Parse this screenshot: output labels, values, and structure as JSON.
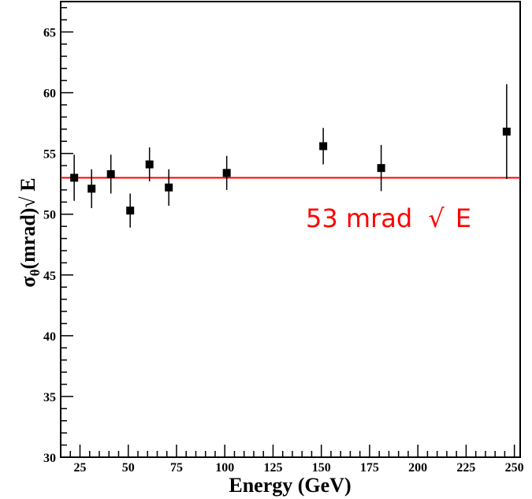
{
  "chart_data": {
    "type": "scatter",
    "xlabel": "Energy (GeV)",
    "ylabel_parts": {
      "sigma": "σ",
      "sub": "θ",
      "rest": "(mrad)",
      "sqrt": "√",
      "tail": " E"
    },
    "xlim": [
      15,
      253
    ],
    "ylim": [
      30,
      67.5
    ],
    "x_ticks": [
      25,
      50,
      75,
      100,
      125,
      150,
      175,
      200,
      225,
      250
    ],
    "y_ticks": [
      30,
      35,
      40,
      45,
      50,
      55,
      60,
      65
    ],
    "grid": false,
    "series": [
      {
        "points": [
          {
            "x": 22,
            "y": 53.0,
            "err": 1.9
          },
          {
            "x": 31,
            "y": 52.1,
            "err": 1.6
          },
          {
            "x": 41,
            "y": 53.3,
            "err": 1.6
          },
          {
            "x": 51,
            "y": 50.3,
            "err": 1.4
          },
          {
            "x": 61,
            "y": 54.1,
            "err": 1.4
          },
          {
            "x": 71,
            "y": 52.2,
            "err": 1.5
          },
          {
            "x": 101,
            "y": 53.4,
            "err": 1.4
          },
          {
            "x": 151,
            "y": 55.6,
            "err": 1.5
          },
          {
            "x": 181,
            "y": 53.8,
            "err": 1.9
          },
          {
            "x": 246,
            "y": 56.8,
            "err": 3.9
          }
        ]
      }
    ],
    "fit_line": {
      "y": 53,
      "color": "#ff0000"
    },
    "annotation": {
      "number": "53 mrad",
      "sqrt": "√",
      "var": "E",
      "color": "#ff0000"
    },
    "colors": {
      "markers": "#000000",
      "axes": "#000000"
    }
  }
}
